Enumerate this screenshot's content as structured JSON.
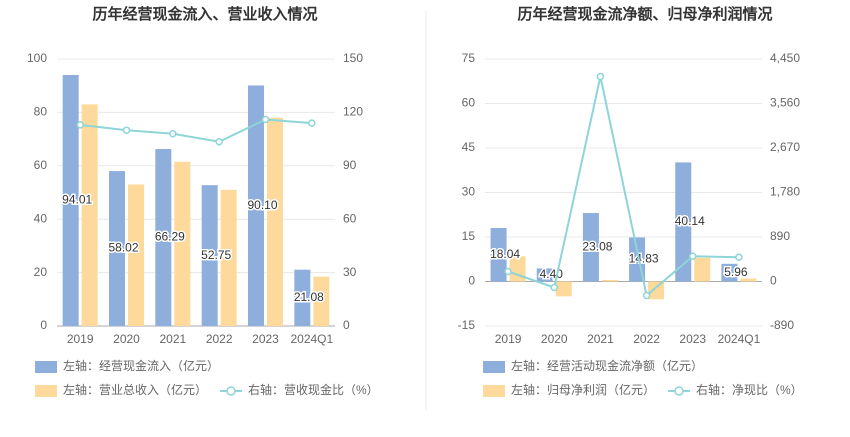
{
  "chart_data": [
    {
      "type": "bar",
      "title": "历年经营现金流入、营业收入情况",
      "categories": [
        "2019",
        "2020",
        "2021",
        "2022",
        "2023",
        "2024Q1"
      ],
      "ylim": [
        0,
        100
      ],
      "yticks": [
        0,
        20,
        40,
        60,
        80,
        100
      ],
      "y2lim": [
        0,
        150
      ],
      "y2ticks": [
        0,
        30,
        60,
        90,
        120,
        150
      ],
      "grid": true,
      "series": [
        {
          "name": "左轴：经营现金流入（亿元）",
          "type": "bar",
          "color": "#8eaedc",
          "values": [
            94.01,
            58.02,
            66.29,
            52.75,
            90.1,
            21.08
          ],
          "value_labels": [
            "94.01",
            "58.02",
            "66.29",
            "52.75",
            "90.10",
            "21.08"
          ]
        },
        {
          "name": "左轴：营业总收入（亿元）",
          "type": "bar",
          "color": "#fdd99b",
          "values": [
            83,
            53,
            61.5,
            51,
            78,
            18.5
          ]
        },
        {
          "name": "右轴：营收现金比（%）",
          "type": "line",
          "axis": "y2",
          "color": "#8dd5d8",
          "values": [
            113,
            110,
            108,
            103.5,
            116,
            114
          ]
        }
      ]
    },
    {
      "type": "bar",
      "title": "历年经营现金流净额、归母净利润情况",
      "categories": [
        "2019",
        "2020",
        "2021",
        "2022",
        "2023",
        "2024Q1"
      ],
      "ylim": [
        -15,
        75
      ],
      "yticks": [
        -15,
        0,
        15,
        30,
        45,
        60,
        75
      ],
      "y2lim": [
        -890,
        4450
      ],
      "y2ticks": [
        -890,
        0,
        890,
        {
          "value": 1780,
          "label": "1,780"
        },
        {
          "value": 2670,
          "label": "2,670"
        },
        {
          "value": 3560,
          "label": "3,560"
        },
        {
          "value": 4450,
          "label": "4,450"
        }
      ],
      "grid": true,
      "series": [
        {
          "name": "左轴：经营活动现金流净额（亿元）",
          "type": "bar",
          "color": "#8eaedc",
          "values": [
            18.04,
            4.4,
            23.08,
            14.83,
            40.14,
            5.96
          ],
          "value_labels": [
            "18.04",
            "4.40",
            "23.08",
            "14.83",
            "40.14",
            "5.96"
          ]
        },
        {
          "name": "左轴：归母净利润（亿元）",
          "type": "bar",
          "color": "#fdd99b",
          "values": [
            8.5,
            -5,
            0.5,
            -6,
            8,
            1
          ]
        },
        {
          "name": "右轴：净现比（%）",
          "type": "line",
          "axis": "y2",
          "color": "#8dd5d8",
          "values": [
            200,
            -120,
            4100,
            -280,
            505,
            485
          ]
        }
      ]
    }
  ]
}
